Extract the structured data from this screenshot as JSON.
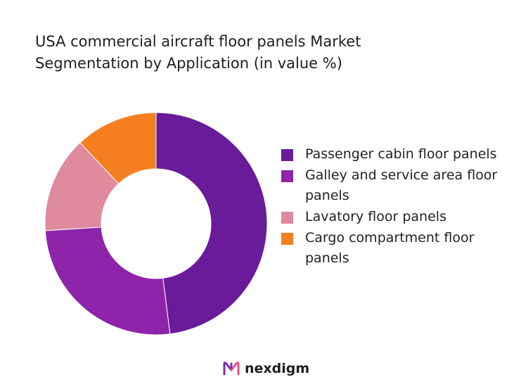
{
  "title_lines": [
    "USA commercial aircraft floor panels Market",
    "Segmentation by Application (in value %)"
  ],
  "chart_data": {
    "type": "pie",
    "variant": "donut",
    "title": "USA commercial aircraft floor panels Market Segmentation by Application (in value %)",
    "categories": [
      "Passenger cabin floor panels",
      "Galley and service area floor panels",
      "Lavatory floor panels",
      "Cargo compartment floor panels"
    ],
    "values": [
      48,
      26,
      14,
      12
    ],
    "colors": [
      "#6a1b9a",
      "#8e24aa",
      "#e08a9e",
      "#f57f20"
    ],
    "legend_position": "right",
    "start_angle": "top, clockwise"
  },
  "legend": [
    {
      "label": "Passenger cabin floor panels",
      "color": "#6a1b9a"
    },
    {
      "label": "Galley and service area floor panels",
      "color": "#8e24aa"
    },
    {
      "label": "Lavatory floor panels",
      "color": "#e08a9e"
    },
    {
      "label": "Cargo compartment floor panels",
      "color": "#f57f20"
    }
  ],
  "brand": {
    "name": "nexdigm",
    "logo_icon": "nexdigm-logo-icon"
  }
}
